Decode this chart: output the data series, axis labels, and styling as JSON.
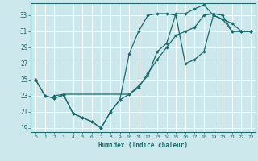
{
  "xlabel": "Humidex (Indice chaleur)",
  "bg_color": "#cce8ec",
  "grid_color": "#ffffff",
  "line_color": "#1a6b6b",
  "ylim": [
    18.5,
    34.5
  ],
  "xlim": [
    -0.5,
    23.5
  ],
  "yticks": [
    19,
    21,
    23,
    25,
    27,
    29,
    31,
    33
  ],
  "xticks": [
    0,
    1,
    2,
    3,
    4,
    5,
    6,
    7,
    8,
    9,
    10,
    11,
    12,
    13,
    14,
    15,
    16,
    17,
    18,
    19,
    20,
    21,
    22,
    23
  ],
  "line1_x": [
    0,
    1,
    2,
    3,
    4,
    5,
    6,
    7,
    8,
    9,
    10,
    11,
    12,
    13,
    14,
    15,
    16,
    17,
    18,
    19,
    20,
    21,
    22,
    23
  ],
  "line1_y": [
    25,
    23,
    22.7,
    23.1,
    20.8,
    20.3,
    19.8,
    19.0,
    21.0,
    22.5,
    23.2,
    24.2,
    25.5,
    28.5,
    29.5,
    33.2,
    33.2,
    33.8,
    34.3,
    33.0,
    32.5,
    31.0,
    31.0,
    31.0
  ],
  "line2_x": [
    0,
    1,
    2,
    3,
    4,
    5,
    6,
    7,
    8,
    9,
    10,
    11,
    12,
    13,
    14,
    15,
    16,
    17,
    18,
    19,
    20,
    21,
    22,
    23
  ],
  "line2_y": [
    25,
    23,
    22.7,
    23.1,
    20.8,
    20.3,
    19.8,
    19.0,
    21.0,
    22.5,
    28.2,
    31.0,
    33.0,
    33.2,
    33.2,
    33.0,
    27.0,
    27.5,
    28.5,
    33.0,
    32.5,
    32.0,
    31.0,
    31.0
  ],
  "line3_x": [
    2,
    3,
    10,
    11,
    12,
    13,
    14,
    15,
    16,
    17,
    18,
    19,
    20,
    21,
    22,
    23
  ],
  "line3_y": [
    23.0,
    23.2,
    23.2,
    24.0,
    25.8,
    27.5,
    29.0,
    30.5,
    31.0,
    31.5,
    33.0,
    33.2,
    33.0,
    31.0,
    31.0,
    31.0
  ]
}
